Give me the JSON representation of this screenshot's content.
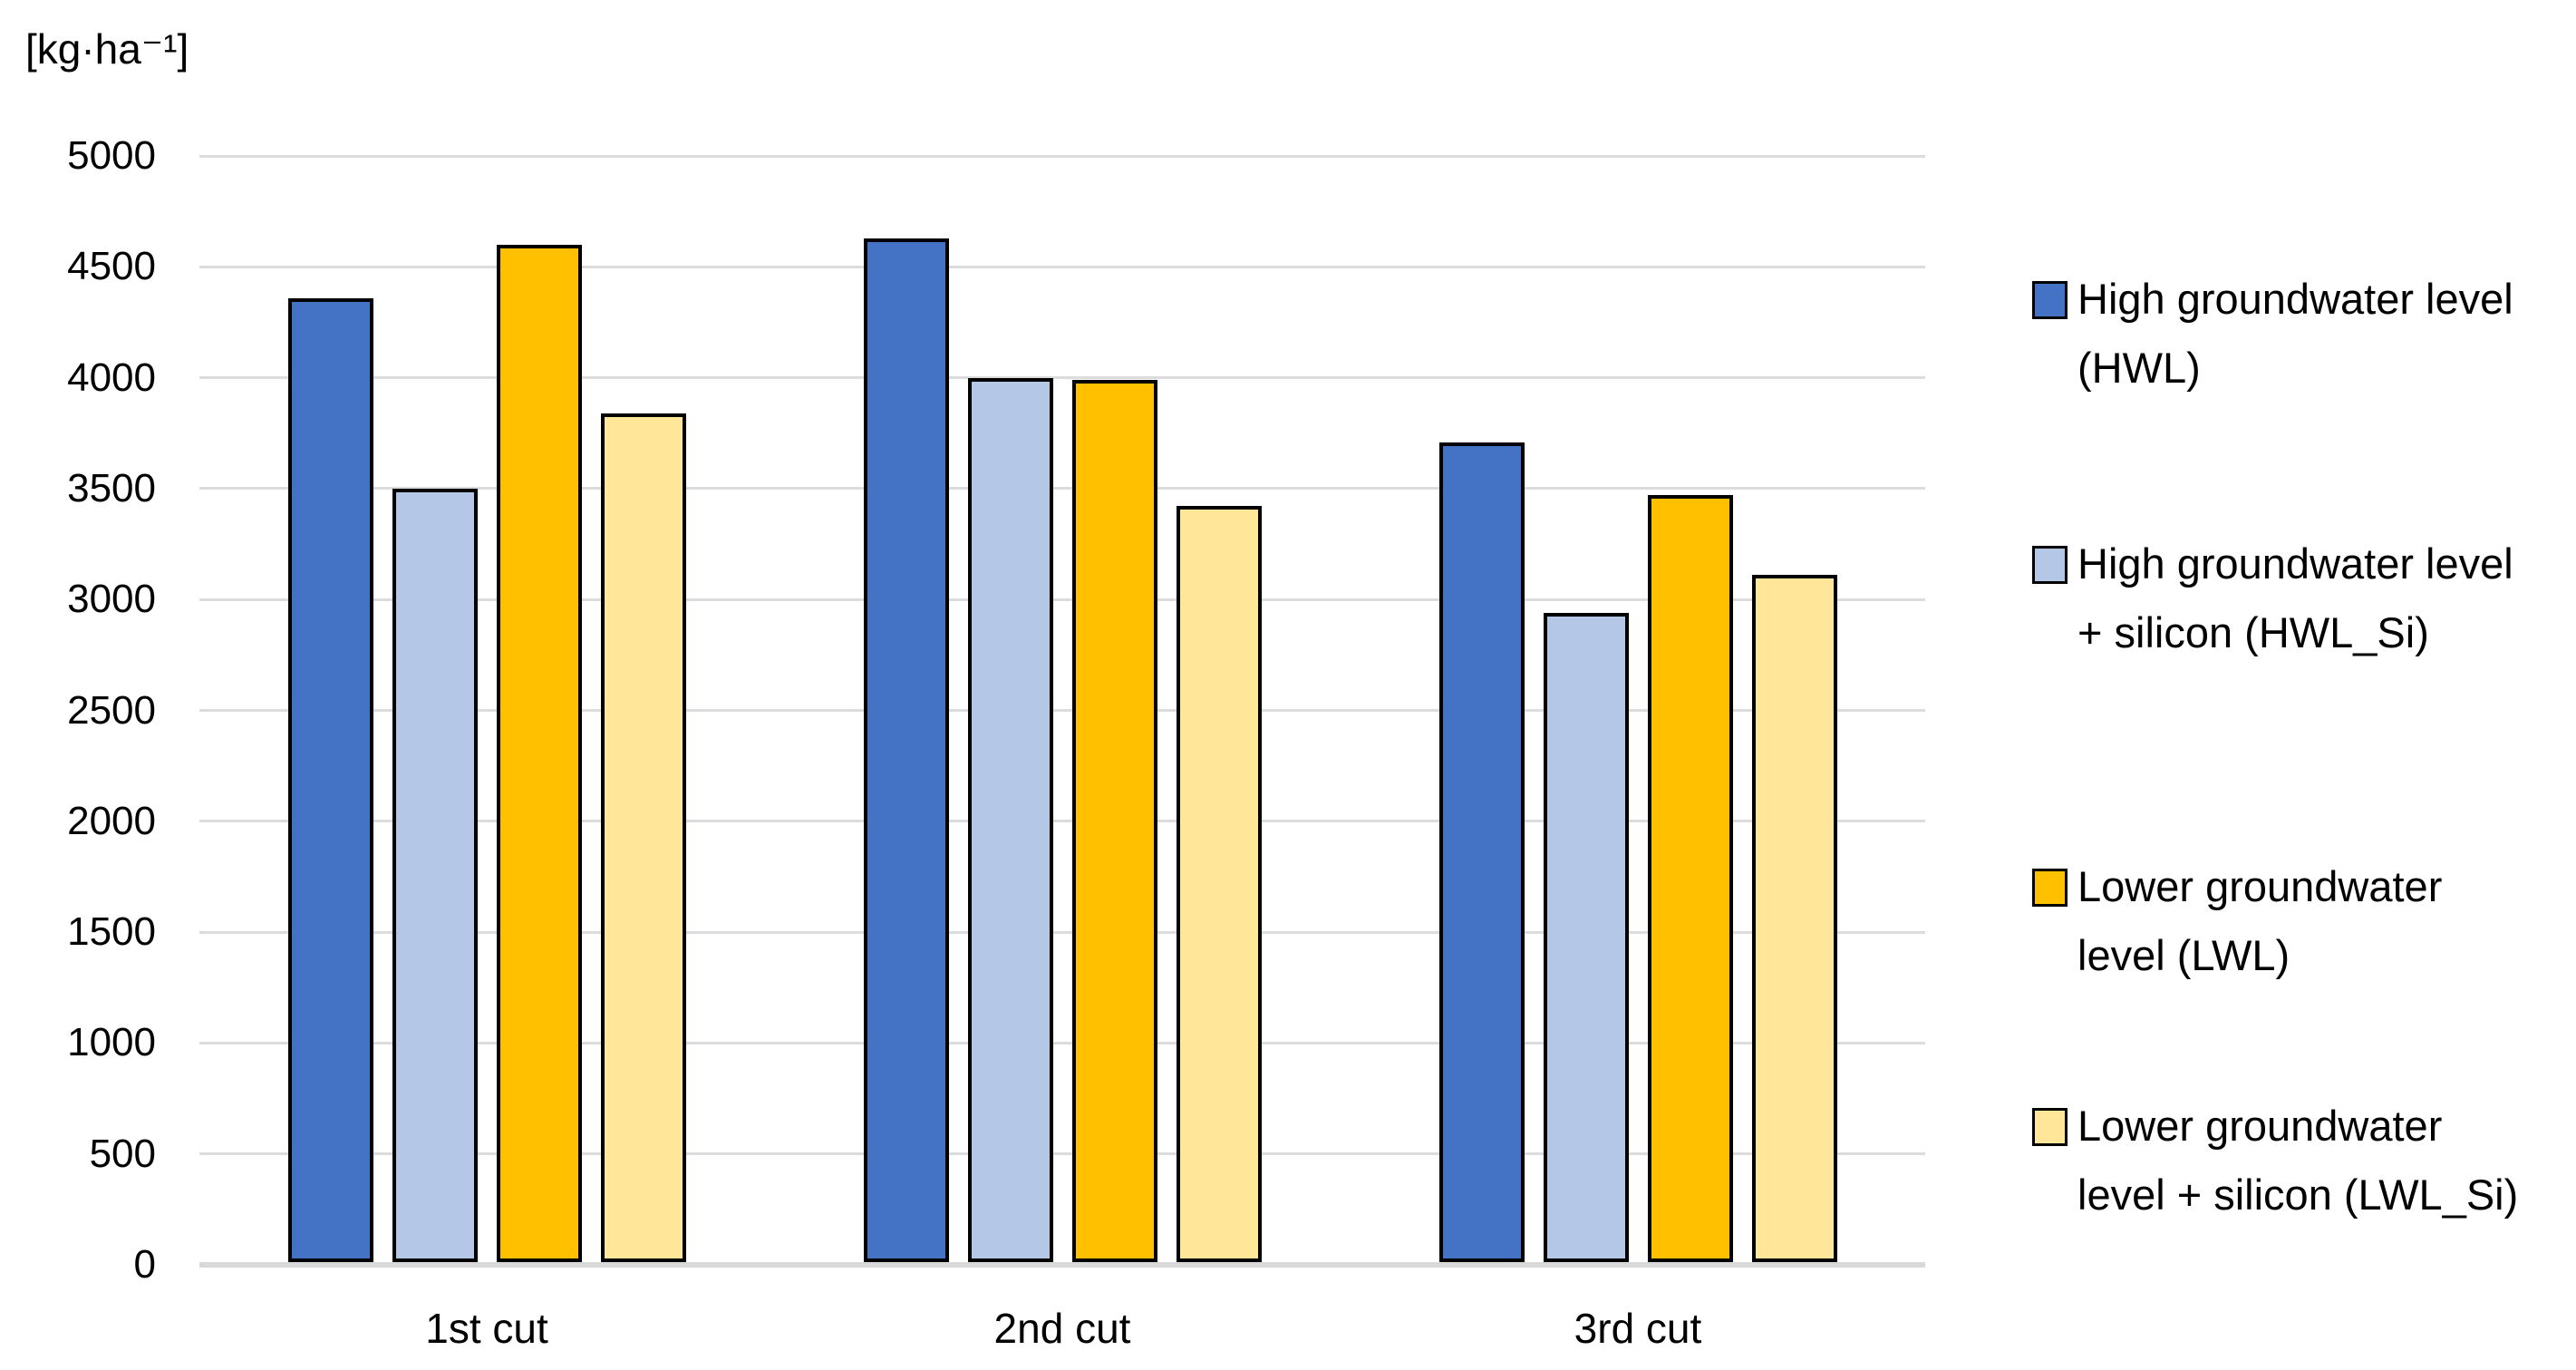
{
  "unit_label": "[kg·ha⁻¹]",
  "chart_data": {
    "type": "bar",
    "title": "",
    "xlabel": "",
    "ylabel": "[kg·ha⁻¹]",
    "categories": [
      "1st cut",
      "2nd cut",
      "3rd cut"
    ],
    "series": [
      {
        "name": "High groundwater level (HWL)",
        "legend_lines": [
          "High groundwater level",
          "(HWL)"
        ],
        "color": "#4472C4",
        "values": [
          4360,
          4630,
          3710
        ]
      },
      {
        "name": "High groundwater level + silicon (HWL_Si)",
        "legend_lines": [
          "High groundwater level",
          "+ silicon (HWL_Si)"
        ],
        "color": "#B4C7E7",
        "values": [
          3500,
          4000,
          2940
        ]
      },
      {
        "name": "Lower groundwater level (LWL)",
        "legend_lines": [
          "Lower groundwater",
          "level (LWL)"
        ],
        "color": "#FFC000",
        "values": [
          4600,
          3990,
          3470
        ]
      },
      {
        "name": "Lower groundwater level + silicon (LWL_Si)",
        "legend_lines": [
          "Lower groundwater",
          "level + silicon (LWL_Si)"
        ],
        "color": "#FFE699",
        "values": [
          3840,
          3420,
          3110
        ]
      }
    ],
    "ylim": [
      0,
      5000
    ],
    "ytick_step": 500,
    "ytick_labels": [
      "0",
      "500",
      "1000",
      "1500",
      "2000",
      "2500",
      "3000",
      "3500",
      "4000",
      "4500",
      "5000"
    ],
    "grid": true,
    "legend_position": "right",
    "colors": {
      "gridline": "#DCDCDC",
      "axis_line": "#D9D9D9",
      "bar_border": "#000000",
      "text": "#000000",
      "background": "#FFFFFF"
    }
  }
}
